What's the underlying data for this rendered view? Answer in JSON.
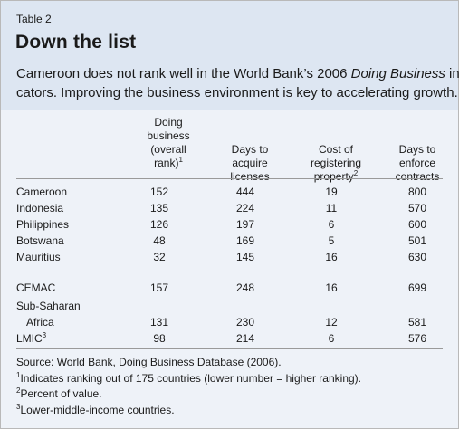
{
  "header": {
    "label": "Table 2",
    "title": "Down the list",
    "subtitle_line1_pre": "Cameroon does not rank well in the World Bank’s 2006 ",
    "subtitle_line1_em": "Doing Business",
    "subtitle_line1_post": " indi-",
    "subtitle_line2": "cators. Improving the business environment is key to accelerating growth."
  },
  "columns": {
    "c1": [
      "Doing",
      "business",
      "(overall",
      "rank)"
    ],
    "c1_sup": "1",
    "c2": [
      "Days to",
      "acquire",
      "licenses"
    ],
    "c3": [
      "Cost of",
      "registering",
      "property"
    ],
    "c3_sup": "2",
    "c4": [
      "Days to",
      "enforce",
      "contracts"
    ]
  },
  "rows": [
    {
      "name": "Cameroon",
      "v": [
        "152",
        "444",
        "19",
        "800"
      ]
    },
    {
      "name": "Indonesia",
      "v": [
        "135",
        "224",
        "11",
        "570"
      ]
    },
    {
      "name": "Philippines",
      "v": [
        "126",
        "197",
        "6",
        "600"
      ]
    },
    {
      "name": "Botswana",
      "v": [
        "48",
        "169",
        "5",
        "501"
      ]
    },
    {
      "name": "Mauritius",
      "v": [
        "32",
        "145",
        "16",
        "630"
      ]
    },
    {
      "name": "CEMAC",
      "v": [
        "157",
        "248",
        "16",
        "699"
      ]
    },
    {
      "name": "Sub-Saharan",
      "name2": "Africa",
      "v": [
        "131",
        "230",
        "12",
        "581"
      ]
    },
    {
      "name": "LMIC",
      "sup": "3",
      "v": [
        "98",
        "214",
        "6",
        "576"
      ]
    }
  ],
  "notes": {
    "source": "Source: World Bank, Doing Business Database (2006).",
    "n1_sup": "1",
    "n1": "Indicates ranking out of 175 countries (lower number = higher ranking).",
    "n2_sup": "2",
    "n2": "Percent of value.",
    "n3_sup": "3",
    "n3": "Lower-middle-income countries."
  },
  "colors": {
    "header_bg": "#dde6f2",
    "body_bg": "#eef2f8",
    "rule": "#9a9a9a"
  }
}
